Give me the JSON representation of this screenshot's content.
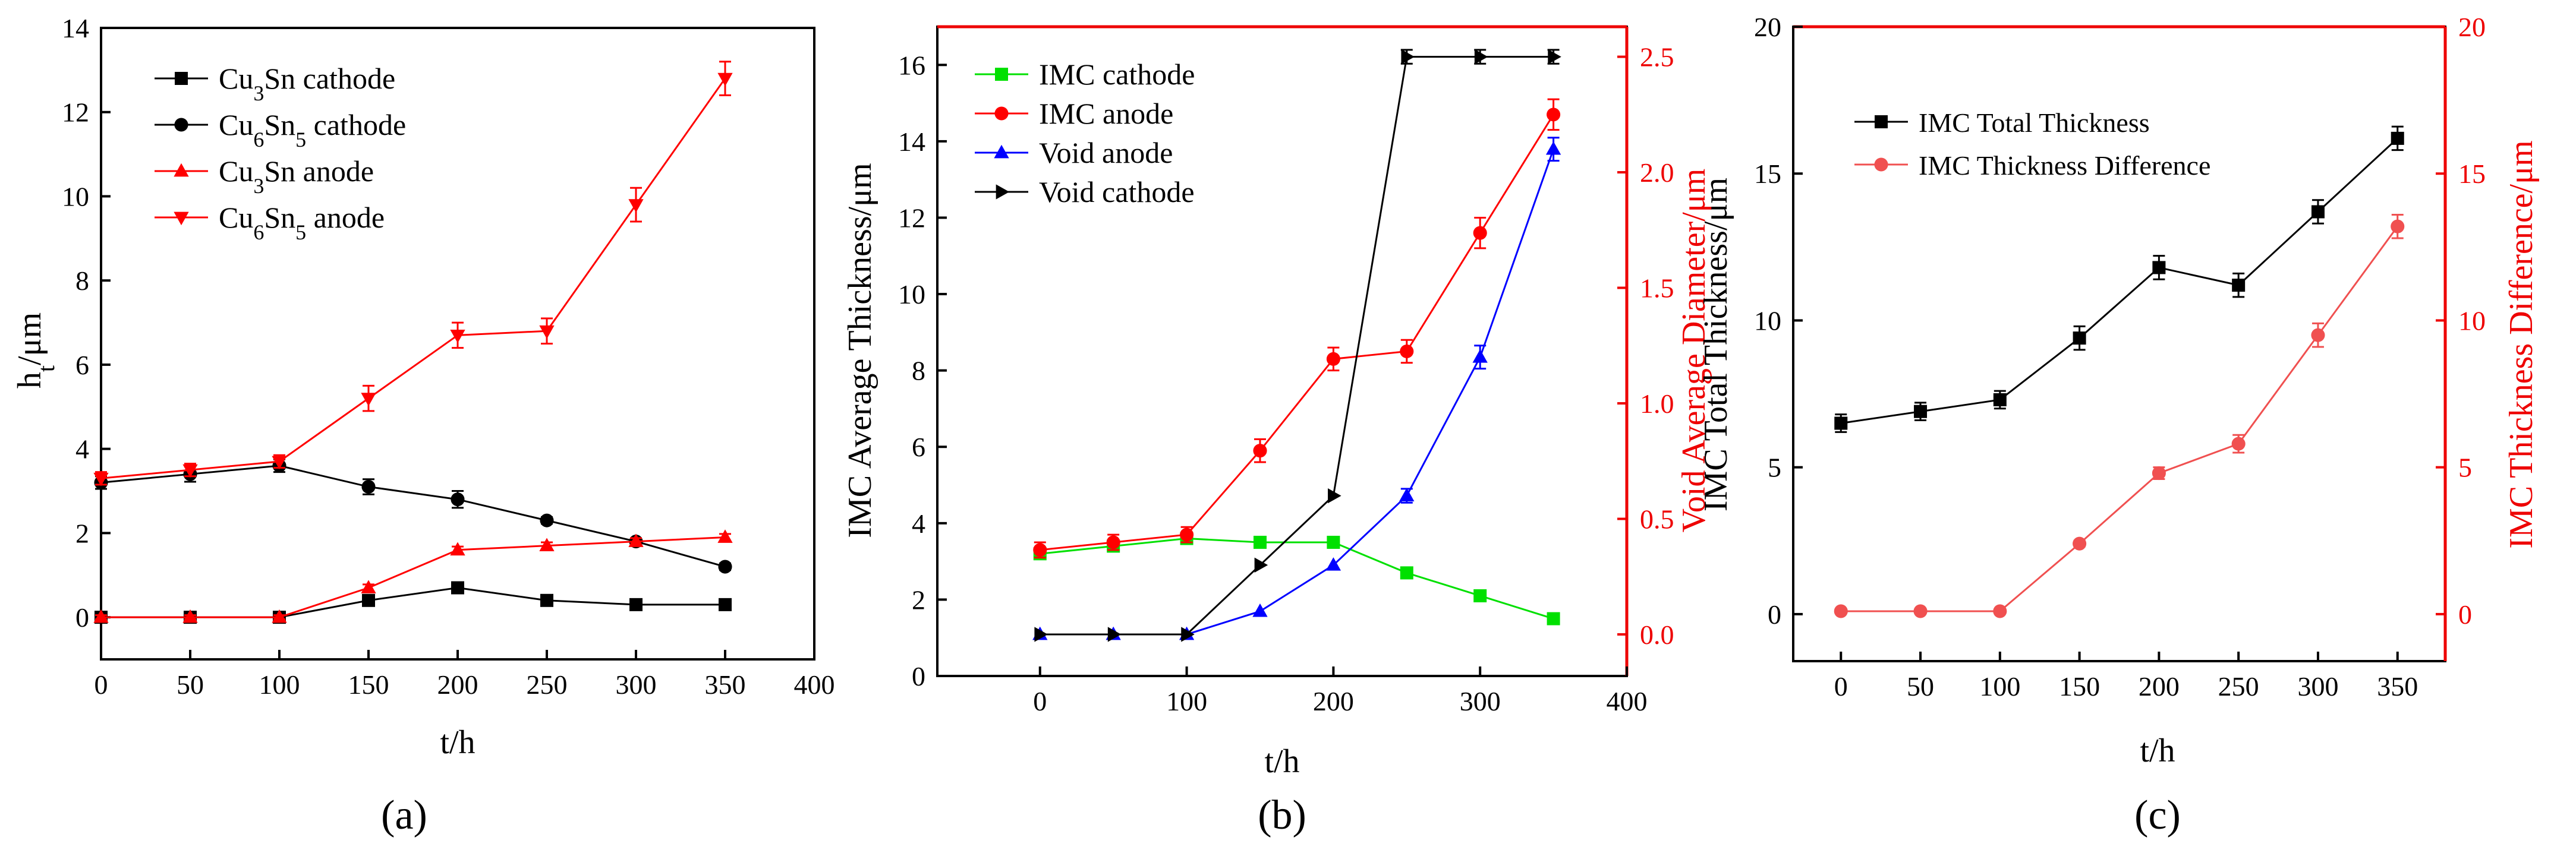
{
  "chart_data": [
    {
      "panel_label": "(a)",
      "type": "line",
      "xlabel": "t/h",
      "ylabel": "h",
      "ylabel_sub": "t",
      "ylabel_unit": "/μm",
      "xlim": [
        0,
        400
      ],
      "ylim": [
        -1,
        14
      ],
      "xticks": [
        0,
        50,
        100,
        150,
        200,
        250,
        300,
        350,
        400
      ],
      "yticks": [
        0,
        2,
        4,
        6,
        8,
        10,
        12,
        14
      ],
      "x": [
        0,
        50,
        100,
        150,
        200,
        250,
        300,
        350
      ],
      "series": [
        {
          "name": "Cu3Sn cathode",
          "label_parts": [
            [
              "Cu",
              ""
            ],
            [
              "3",
              "sub"
            ],
            [
              "Sn cathode",
              ""
            ]
          ],
          "color": "#000000",
          "marker": "square",
          "values": [
            0,
            0,
            0,
            0.4,
            0.7,
            0.4,
            0.3,
            0.3
          ],
          "errors": [
            0.05,
            0.05,
            0.05,
            0.08,
            0.1,
            0.08,
            0.05,
            0.05
          ]
        },
        {
          "name": "Cu6Sn5 cathode",
          "label_parts": [
            [
              "Cu",
              ""
            ],
            [
              "6",
              "sub"
            ],
            [
              "Sn",
              ""
            ],
            [
              "5",
              "sub"
            ],
            [
              " cathode",
              ""
            ]
          ],
          "color": "#000000",
          "marker": "circle",
          "values": [
            3.2,
            3.4,
            3.6,
            3.1,
            2.8,
            2.3,
            1.8,
            1.2
          ],
          "errors": [
            0.15,
            0.18,
            0.15,
            0.18,
            0.2,
            0.08,
            0.06,
            0.08
          ]
        },
        {
          "name": "Cu3Sn anode",
          "label_parts": [
            [
              "Cu",
              ""
            ],
            [
              "3",
              "sub"
            ],
            [
              "Sn anode",
              ""
            ]
          ],
          "color": "#ff0000",
          "marker": "triangle-up",
          "values": [
            0,
            0,
            0,
            0.7,
            1.6,
            1.7,
            1.8,
            1.9
          ],
          "errors": [
            0.05,
            0.05,
            0.05,
            0.08,
            0.08,
            0.08,
            0.08,
            0.08
          ]
        },
        {
          "name": "Cu6Sn5 anode",
          "label_parts": [
            [
              "Cu",
              ""
            ],
            [
              "6",
              "sub"
            ],
            [
              "Sn",
              ""
            ],
            [
              "5",
              "sub"
            ],
            [
              " anode",
              ""
            ]
          ],
          "color": "#ff0000",
          "marker": "triangle-down",
          "values": [
            3.3,
            3.5,
            3.7,
            5.2,
            6.7,
            6.8,
            9.8,
            12.8
          ],
          "errors": [
            0.15,
            0.15,
            0.15,
            0.3,
            0.3,
            0.3,
            0.4,
            0.4
          ]
        }
      ]
    },
    {
      "panel_label": "(b)",
      "type": "line",
      "xlabel": "t/h",
      "ylabel": "IMC Average Thickness/μm",
      "y2label": "Void Average Diameter/μm",
      "xlim": [
        -70,
        400
      ],
      "ylim": [
        0,
        17
      ],
      "y2lim": [
        -0.18,
        2.63
      ],
      "xticks": [
        0,
        100,
        200,
        300,
        400
      ],
      "yticks": [
        0,
        2,
        4,
        6,
        8,
        10,
        12,
        14,
        16
      ],
      "y2ticks": [
        0.0,
        0.5,
        1.0,
        1.5,
        2.0,
        2.5
      ],
      "x": [
        0,
        50,
        100,
        150,
        200,
        250,
        300,
        350
      ],
      "series": [
        {
          "name": "IMC cathode",
          "axis": "left",
          "color": "#00e000",
          "marker": "square",
          "values": [
            3.2,
            3.4,
            3.6,
            3.5,
            3.5,
            2.7,
            2.1,
            1.5
          ],
          "errors": [
            0.1,
            0.1,
            0.1,
            0.1,
            0.1,
            0.1,
            0.1,
            0.1
          ]
        },
        {
          "name": "IMC anode",
          "axis": "left",
          "color": "#ff0000",
          "marker": "circle",
          "values": [
            3.3,
            3.5,
            3.7,
            5.9,
            8.3,
            8.5,
            11.6,
            14.7
          ],
          "errors": [
            0.2,
            0.2,
            0.2,
            0.3,
            0.3,
            0.3,
            0.4,
            0.4
          ]
        },
        {
          "name": "Void anode",
          "axis": "right",
          "color": "#0000ff",
          "marker": "triangle-up",
          "values": [
            0,
            0,
            0,
            0.1,
            0.3,
            0.6,
            1.2,
            2.1
          ],
          "errors": [
            0,
            0,
            0,
            0,
            0,
            0.03,
            0.05,
            0.05
          ]
        },
        {
          "name": "Void cathode",
          "axis": "right",
          "color": "#000000",
          "marker": "triangle-right",
          "values": [
            0,
            0,
            0,
            0.3,
            0.6,
            2.5,
            2.5,
            2.5
          ],
          "errors": [
            0,
            0,
            0,
            0,
            0,
            0.03,
            0.03,
            0.03
          ]
        }
      ]
    },
    {
      "panel_label": "(c)",
      "type": "line",
      "xlabel": "t/h",
      "ylabel": "IMC Total Thickness/μm",
      "y2label": "IMC Thickness Difference/μm",
      "xlim": [
        -30,
        380
      ],
      "ylim": [
        -1.6,
        20
      ],
      "y2lim": [
        -1.6,
        20
      ],
      "xticks": [
        0,
        50,
        100,
        150,
        200,
        250,
        300,
        350
      ],
      "yticks": [
        0,
        5,
        10,
        15,
        20
      ],
      "y2ticks": [
        0,
        5,
        10,
        15,
        20
      ],
      "x": [
        0,
        50,
        100,
        150,
        200,
        250,
        300,
        350
      ],
      "series": [
        {
          "name": "IMC Total Thickness",
          "axis": "left",
          "color": "#000000",
          "marker": "square",
          "values": [
            6.5,
            6.9,
            7.3,
            9.4,
            11.8,
            11.2,
            13.7,
            16.2
          ],
          "errors": [
            0.3,
            0.3,
            0.3,
            0.4,
            0.4,
            0.4,
            0.4,
            0.4
          ]
        },
        {
          "name": "IMC Thickness Difference",
          "axis": "right",
          "color": "#f05050",
          "marker": "circle",
          "values": [
            0.1,
            0.1,
            0.1,
            2.4,
            4.8,
            5.8,
            9.5,
            13.2
          ],
          "errors": [
            0.05,
            0.05,
            0.05,
            0.1,
            0.2,
            0.3,
            0.4,
            0.4
          ]
        }
      ]
    }
  ]
}
